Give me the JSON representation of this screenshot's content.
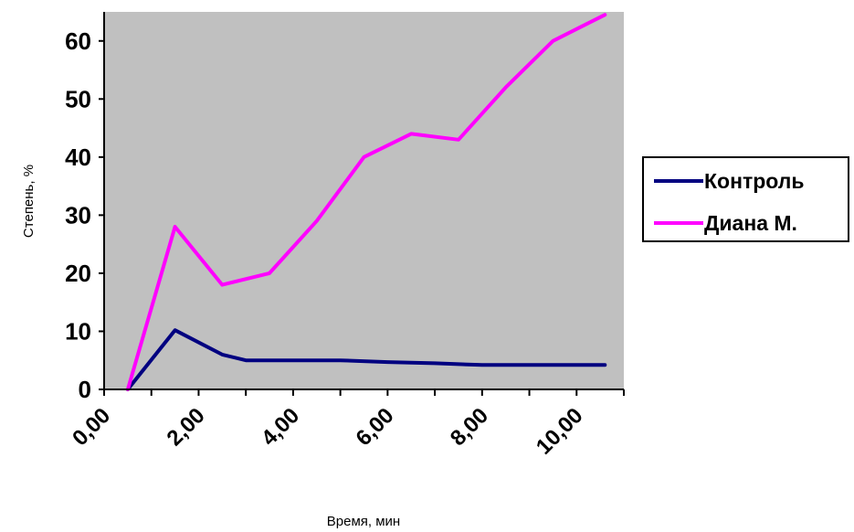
{
  "chart_data": {
    "type": "line",
    "title": "",
    "xlabel": "Время, мин",
    "ylabel": "Степень, %",
    "xlim": [
      0,
      11
    ],
    "ylim": [
      0,
      65
    ],
    "xticks": [
      0,
      2,
      4,
      6,
      8,
      10
    ],
    "xtick_labels": [
      "0,00",
      "2,00",
      "4,00",
      "6,00",
      "8,00",
      "10,00"
    ],
    "yticks": [
      0,
      10,
      20,
      30,
      40,
      50,
      60
    ],
    "ytick_labels": [
      "0",
      "10",
      "20",
      "30",
      "40",
      "50",
      "60"
    ],
    "grid": false,
    "legend_position": "right",
    "plot_background": "#c0c0c0",
    "series": [
      {
        "name": "Контроль",
        "color": "#000080",
        "x": [
          0.5,
          1.5,
          2.5,
          3.0,
          4.0,
          5.0,
          6.0,
          7.0,
          8.0,
          9.0,
          10.0,
          10.6
        ],
        "y": [
          0,
          10.2,
          6,
          5,
          5,
          5,
          4.7,
          4.5,
          4.2,
          4.2,
          4.2,
          4.2
        ]
      },
      {
        "name": "Диана М.",
        "color": "#ff00ff",
        "x": [
          0.5,
          1.5,
          2.5,
          3.5,
          4.5,
          5.5,
          6.5,
          7.5,
          8.5,
          9.5,
          10.6
        ],
        "y": [
          0,
          28,
          18,
          20,
          29,
          40,
          44,
          43,
          52,
          60,
          64.5
        ]
      }
    ]
  }
}
